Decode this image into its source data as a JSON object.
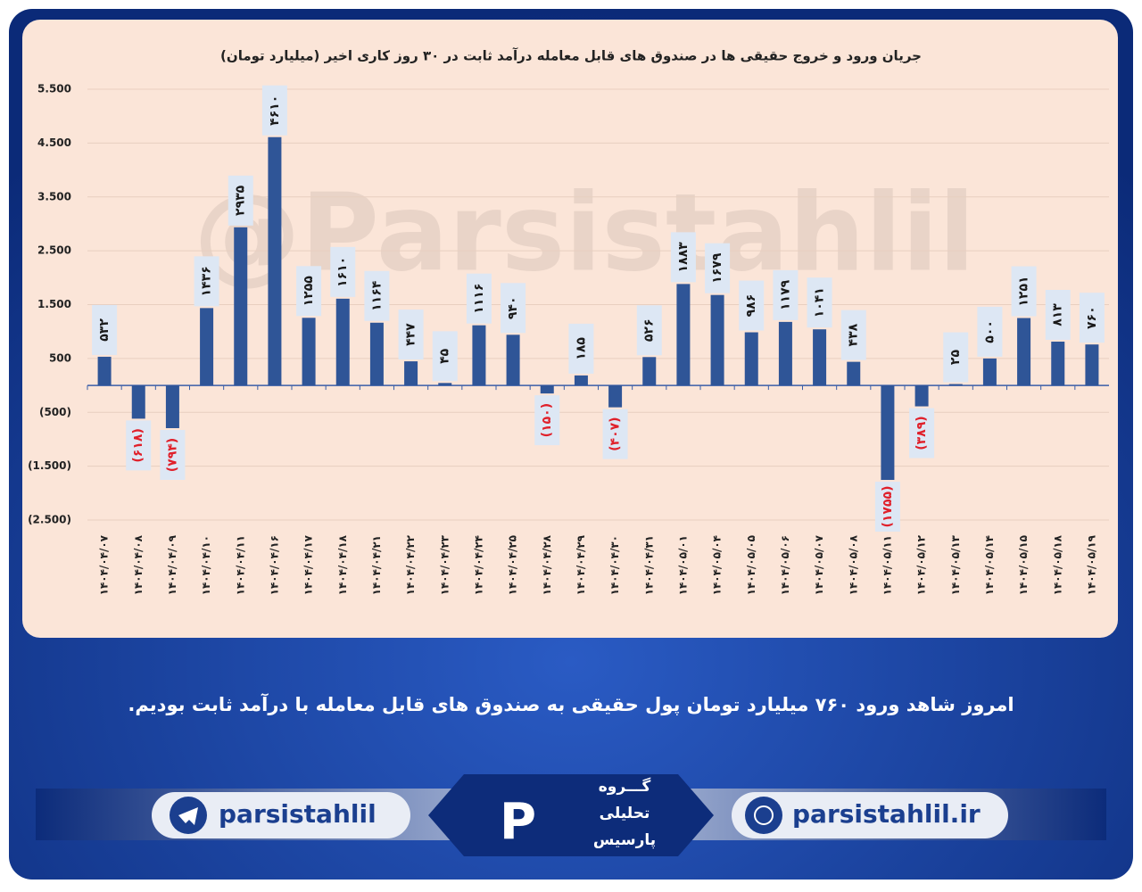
{
  "chart_data": {
    "type": "bar",
    "title": "جریان ورود و خروج حقیقی ها در صندوق های قابل معامله درآمد ثابت در ۳۰ روز کاری اخیر (میلیارد تومان)",
    "categories": [
      "۱۴۰۴/۰۴/۰۷",
      "۱۴۰۴/۰۴/۰۸",
      "۱۴۰۴/۰۴/۰۹",
      "۱۴۰۴/۰۴/۱۰",
      "۱۴۰۴/۰۴/۱۱",
      "۱۴۰۴/۰۴/۱۶",
      "۱۴۰۴/۰۴/۱۷",
      "۱۴۰۴/۰۴/۱۸",
      "۱۴۰۴/۰۴/۲۱",
      "۱۴۰۴/۰۴/۲۲",
      "۱۴۰۴/۰۴/۲۳",
      "۱۴۰۴/۰۴/۲۴",
      "۱۴۰۴/۰۴/۲۵",
      "۱۴۰۴/۰۴/۲۸",
      "۱۴۰۴/۰۴/۲۹",
      "۱۴۰۴/۰۴/۳۰",
      "۱۴۰۴/۰۴/۳۱",
      "۱۴۰۴/۰۵/۰۱",
      "۱۴۰۴/۰۵/۰۴",
      "۱۴۰۴/۰۵/۰۵",
      "۱۴۰۴/۰۵/۰۶",
      "۱۴۰۴/۰۵/۰۷",
      "۱۴۰۴/۰۵/۰۸",
      "۱۴۰۴/۰۵/۱۱",
      "۱۴۰۴/۰۵/۱۲",
      "۱۴۰۴/۰۵/۱۳",
      "۱۴۰۴/۰۵/۱۴",
      "۱۴۰۴/۰۵/۱۵",
      "۱۴۰۴/۰۵/۱۸",
      "۱۴۰۴/۰۵/۱۹"
    ],
    "values": [
      532,
      -618,
      -794,
      1436,
      2935,
      4610,
      1255,
      1610,
      1164,
      447,
      45,
      1116,
      940,
      -150,
      185,
      -407,
      526,
      1883,
      1679,
      986,
      1179,
      1041,
      438,
      -1755,
      -389,
      25,
      500,
      1251,
      813,
      760
    ],
    "value_labels": [
      "۵۳۲",
      "(۶۱۸)",
      "(۷۹۴)",
      "۱۴۳۶",
      "۲۹۳۵",
      "۴۶۱۰",
      "۱۲۵۵",
      "۱۶۱۰",
      "۱۱۶۴",
      "۴۴۷",
      "۴۵",
      "۱۱۱۶",
      "۹۴۰",
      "(۱۵۰)",
      "۱۸۵",
      "(۴۰۷)",
      "۵۲۶",
      "۱۸۸۳",
      "۱۶۷۹",
      "۹۸۶",
      "۱۱۷۹",
      "۱۰۴۱",
      "۴۳۸",
      "(۱۷۵۵)",
      "(۳۸۹)",
      "۲۵",
      "۵۰۰",
      "۱۲۵۱",
      "۸۱۳",
      "۷۶۰"
    ],
    "color": "#2f5597",
    "negative_label_color": "#e0202a",
    "label_color": "#1a1a1a",
    "ylim": [
      -2500,
      5500
    ],
    "yticks": [
      {
        "value": 5500,
        "label": "5.500"
      },
      {
        "value": 4500,
        "label": "4.500"
      },
      {
        "value": 3500,
        "label": "3.500"
      },
      {
        "value": 2500,
        "label": "2.500"
      },
      {
        "value": 1500,
        "label": "1.500"
      },
      {
        "value": 500,
        "label": "500"
      },
      {
        "value": -500,
        "label": "(500)"
      },
      {
        "value": -1500,
        "label": "(1.500)"
      },
      {
        "value": -2500,
        "label": "(2.500)"
      }
    ],
    "grid": true
  },
  "watermark": "@Parsistahlil",
  "caption": "امروز شاهد ورود ۷۶۰ میلیارد تومان پول حقیقی به صندوق های قابل معامله با درآمد ثابت بودیم.",
  "footer": {
    "telegram": "parsistahlil",
    "logo": [
      "گـــروه",
      "تحلیلی",
      "پارسیس"
    ],
    "website": "parsistahlil.ir"
  }
}
